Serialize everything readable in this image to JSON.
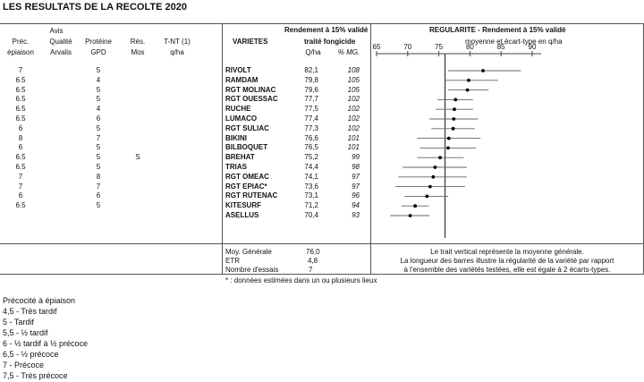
{
  "title": "LES RESULTATS DE LA RECOLTE 2020",
  "left_headers": {
    "avis": "Avis",
    "prec": "Préc.",
    "epiaison": "épiaison",
    "qualite": "Qualité",
    "arvalis": "Arvalis",
    "proteine": "Protéine",
    "gpd": "GPD",
    "res": "Rés.",
    "mos": "Mos",
    "tnt": "T-NT (1)",
    "qha": "q/ha"
  },
  "mid_headers": {
    "rendement": "Rendement à 15% validé",
    "varietes": "VARIETES",
    "traite": "traité fongicide",
    "qha": "Q/ha",
    "pct": "% MG."
  },
  "chart_headers": {
    "title": "REGULARITE - Rendement à 15% validé",
    "subtitle": "moyenne et écart-type en q/ha",
    "ticks": [
      "65",
      "70",
      "75",
      "80",
      "85",
      "90"
    ]
  },
  "rows": [
    {
      "prec": "7",
      "proteine": "5",
      "res": "",
      "variete": "RIVOLT",
      "qha": "82,1",
      "pct": "108"
    },
    {
      "prec": "6.5",
      "proteine": "4",
      "res": "",
      "variete": "RAMDAM",
      "qha": "79,8",
      "pct": "105"
    },
    {
      "prec": "6.5",
      "proteine": "5",
      "res": "",
      "variete": "RGT MOLINAC",
      "qha": "79,6",
      "pct": "105"
    },
    {
      "prec": "6.5",
      "proteine": "5",
      "res": "",
      "variete": "RGT OUESSAC",
      "qha": "77,7",
      "pct": "102"
    },
    {
      "prec": "6.5",
      "proteine": "4",
      "res": "",
      "variete": "RUCHE",
      "qha": "77,5",
      "pct": "102"
    },
    {
      "prec": "6.5",
      "proteine": "6",
      "res": "",
      "variete": "LUMACO",
      "qha": "77,4",
      "pct": "102"
    },
    {
      "prec": "6",
      "proteine": "5",
      "res": "",
      "variete": "RGT SULIAC",
      "qha": "77,3",
      "pct": "102"
    },
    {
      "prec": "8",
      "proteine": "7",
      "res": "",
      "variete": "BIKINI",
      "qha": "76,6",
      "pct": "101"
    },
    {
      "prec": "6",
      "proteine": "5",
      "res": "",
      "variete": "BILBOQUET",
      "qha": "76,5",
      "pct": "101"
    },
    {
      "prec": "6.5",
      "proteine": "5",
      "res": "S",
      "variete": "BREHAT",
      "qha": "75,2",
      "pct": "99"
    },
    {
      "prec": "6.5",
      "proteine": "5",
      "res": "",
      "variete": "TRIAS",
      "qha": "74,4",
      "pct": "98"
    },
    {
      "prec": "7",
      "proteine": "8",
      "res": "",
      "variete": "RGT OMEAC",
      "qha": "74,1",
      "pct": "97"
    },
    {
      "prec": "7",
      "proteine": "7",
      "res": "",
      "variete": "RGT EPIAC*",
      "qha": "73,6",
      "pct": "97"
    },
    {
      "prec": "6",
      "proteine": "6",
      "res": "",
      "variete": "RGT RUTENAC",
      "qha": "73,1",
      "pct": "96"
    },
    {
      "prec": "6.5",
      "proteine": "5",
      "res": "",
      "variete": "KITESURF",
      "qha": "71,2",
      "pct": "94"
    },
    {
      "prec": "",
      "proteine": "",
      "res": "",
      "variete": "ASELLUS",
      "qha": "70,4",
      "pct": "93"
    }
  ],
  "chart_data": {
    "type": "scatter",
    "xlim": [
      65,
      90
    ],
    "mean": 76.0,
    "points": [
      {
        "name": "RIVOLT",
        "mean": 82.1,
        "low": 76.5,
        "high": 88.2
      },
      {
        "name": "RAMDAM",
        "mean": 79.8,
        "low": 76.0,
        "high": 84.5
      },
      {
        "name": "RGT MOLINAC",
        "mean": 79.6,
        "low": 76.5,
        "high": 83.0
      },
      {
        "name": "RGT OUESSAC",
        "mean": 77.7,
        "low": 74.8,
        "high": 80.5
      },
      {
        "name": "RUCHE",
        "mean": 77.5,
        "low": 74.5,
        "high": 80.5
      },
      {
        "name": "LUMACO",
        "mean": 77.4,
        "low": 73.5,
        "high": 81.3
      },
      {
        "name": "RGT SULIAC",
        "mean": 77.3,
        "low": 73.8,
        "high": 80.8
      },
      {
        "name": "BIKINI",
        "mean": 76.6,
        "low": 71.5,
        "high": 81.7
      },
      {
        "name": "BILBOQUET",
        "mean": 76.5,
        "low": 72.0,
        "high": 81.0
      },
      {
        "name": "BREHAT",
        "mean": 75.2,
        "low": 71.5,
        "high": 79.0
      },
      {
        "name": "TRIAS",
        "mean": 74.4,
        "low": 69.2,
        "high": 79.5
      },
      {
        "name": "RGT OMEAC",
        "mean": 74.1,
        "low": 68.5,
        "high": 79.5
      },
      {
        "name": "RGT EPIAC*",
        "mean": 73.6,
        "low": 68.0,
        "high": 79.2
      },
      {
        "name": "RGT RUTENAC",
        "mean": 73.1,
        "low": 69.5,
        "high": 76.5
      },
      {
        "name": "KITESURF",
        "mean": 71.2,
        "low": 69.0,
        "high": 73.4
      },
      {
        "name": "ASELLUS",
        "mean": 70.4,
        "low": 67.2,
        "high": 73.5
      }
    ]
  },
  "stats": {
    "moy_label": "Moy. Générale",
    "moy_value": "76,0",
    "etr_label": "ETR",
    "etr_value": "4,8",
    "essais_label": "Nombre d'essais",
    "essais_value": "7",
    "note1": "Le trait vertical représente la moyenne générale.",
    "note2": "La longueur des barres illustre la régularité de la variété par rapport",
    "note3": "à l'ensemble des variétés testées, elle est égale à 2 écarts-types."
  },
  "footnote": "* : données estimées dans un ou plusieurs lieux",
  "legend": {
    "title": "Précocité à épiaison",
    "items": [
      "4,5 - Très tardif",
      "5 - Tardif",
      "5,5 - ½ tardif",
      "6 - ½ tardif à ½ précoce",
      "6,5 - ½ précoce",
      "7 - Précoce",
      "7,5 - Très précoce"
    ]
  }
}
